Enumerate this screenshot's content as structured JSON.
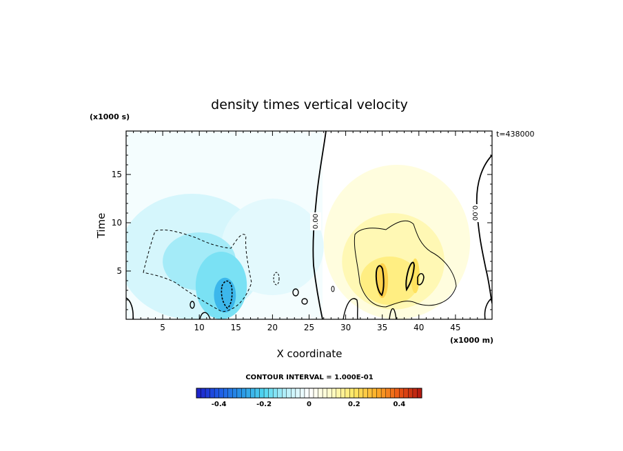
{
  "chart_data": {
    "type": "heatmap",
    "title": "density times vertical velocity",
    "xlabel": "X coordinate",
    "ylabel": "Time",
    "x_unit_label": "(x1000 m)",
    "y_unit_label": "(x1000 s)",
    "time_label": "t=438000",
    "xlim": [
      0,
      50
    ],
    "ylim": [
      0,
      19.5
    ],
    "x_ticks": [
      {
        "value": 5,
        "label": "5"
      },
      {
        "value": 10,
        "label": "10"
      },
      {
        "value": 15,
        "label": "15"
      },
      {
        "value": 20,
        "label": "20"
      },
      {
        "value": 25,
        "label": "25"
      },
      {
        "value": 30,
        "label": "30"
      },
      {
        "value": 35,
        "label": "35"
      },
      {
        "value": 40,
        "label": "40"
      },
      {
        "value": 45,
        "label": "45"
      }
    ],
    "y_ticks": [
      {
        "value": 5,
        "label": "5"
      },
      {
        "value": 10,
        "label": "10"
      },
      {
        "value": 15,
        "label": "15"
      }
    ],
    "contour_interval_text": "CONTOUR INTERVAL = 1.000E-01",
    "zero_contour_labels": [
      "0.00",
      "0.00"
    ],
    "colorbar": {
      "vmin": -0.5,
      "vmax": 0.5,
      "ticks": [
        {
          "value": -0.4,
          "label": "-0.4"
        },
        {
          "value": -0.2,
          "label": "-0.2"
        },
        {
          "value": 0,
          "label": "0"
        },
        {
          "value": 0.2,
          "label": "0.2"
        },
        {
          "value": 0.4,
          "label": "0.4"
        }
      ]
    },
    "regions": [
      {
        "x": 9,
        "y": 6.5,
        "rx": 10,
        "ry": 6.5,
        "value": -0.06
      },
      {
        "x": 20,
        "y": 7.5,
        "rx": 7,
        "ry": 5,
        "value": -0.04
      },
      {
        "x": 10,
        "y": 6,
        "rx": 5,
        "ry": 3,
        "value": -0.12
      },
      {
        "x": 13,
        "y": 3.5,
        "rx": 3.5,
        "ry": 3.5,
        "value": -0.16
      },
      {
        "x": 13.5,
        "y": 2.5,
        "rx": 1.5,
        "ry": 1.8,
        "value": -0.25
      },
      {
        "x": 37,
        "y": 8,
        "rx": 10,
        "ry": 8,
        "value": 0.06
      },
      {
        "x": 36.5,
        "y": 6,
        "rx": 7,
        "ry": 5,
        "value": 0.12
      },
      {
        "x": 36,
        "y": 4,
        "rx": 4,
        "ry": 2.5,
        "value": 0.17
      },
      {
        "x": 35,
        "y": 4,
        "rx": 0.8,
        "ry": 1.8,
        "value": 0.24
      },
      {
        "x": 39.5,
        "y": 4.5,
        "rx": 0.6,
        "ry": 1.8,
        "value": 0.21
      }
    ]
  }
}
